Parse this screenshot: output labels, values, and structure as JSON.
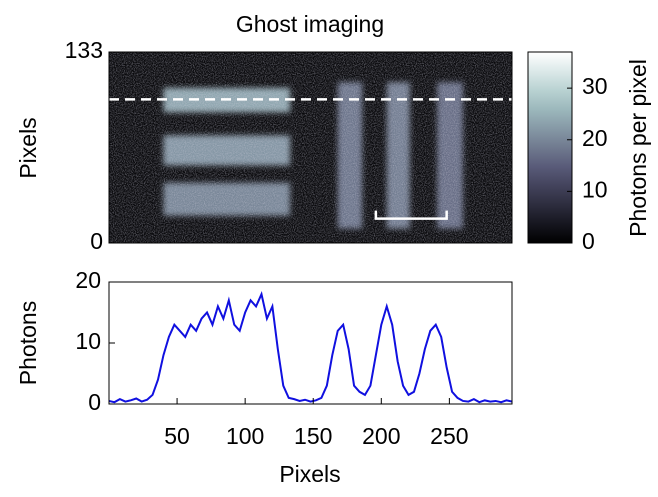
{
  "chart_data": [
    {
      "type": "image",
      "title": "Ghost imaging",
      "ylabel": "Pixels",
      "xlim": [
        0,
        296
      ],
      "ylim": [
        0,
        133
      ],
      "yticks": [
        0,
        133
      ],
      "regions": [
        {
          "x": [
            40,
            133
          ],
          "y": [
            91,
            108
          ],
          "value": 24
        },
        {
          "x": [
            40,
            133
          ],
          "y": [
            54,
            75
          ],
          "value": 22
        },
        {
          "x": [
            40,
            133
          ],
          "y": [
            19,
            42
          ],
          "value": 20
        },
        {
          "x": [
            168,
            186
          ],
          "y": [
            10,
            112
          ],
          "value": 18
        },
        {
          "x": [
            204,
            221
          ],
          "y": [
            10,
            112
          ],
          "value": 19
        },
        {
          "x": [
            241,
            260
          ],
          "y": [
            10,
            112
          ],
          "value": 17
        }
      ],
      "dashed_line_y": 100,
      "scale_bar": {
        "x": [
          196,
          248
        ],
        "y": 17
      },
      "colorbar": {
        "label": "Photons per pixel",
        "lim": [
          0,
          37
        ],
        "ticks": [
          0,
          10,
          20,
          30
        ]
      }
    },
    {
      "type": "line",
      "ylabel": "Photons",
      "xlabel": "Pixels",
      "color": "#1010e0",
      "xlim": [
        0,
        296
      ],
      "ylim": [
        0,
        20
      ],
      "xticks": [
        50,
        100,
        150,
        200,
        250
      ],
      "yticks": [
        0,
        10,
        20
      ],
      "x": [
        0,
        4,
        8,
        12,
        16,
        20,
        24,
        28,
        32,
        36,
        40,
        44,
        48,
        52,
        56,
        60,
        64,
        68,
        72,
        76,
        80,
        84,
        88,
        92,
        96,
        100,
        104,
        108,
        112,
        116,
        120,
        124,
        128,
        132,
        136,
        140,
        144,
        148,
        152,
        156,
        160,
        164,
        168,
        172,
        176,
        180,
        184,
        188,
        192,
        196,
        200,
        204,
        208,
        212,
        216,
        220,
        224,
        228,
        232,
        236,
        240,
        244,
        248,
        252,
        256,
        260,
        264,
        268,
        272,
        276,
        280,
        284,
        288,
        292,
        296
      ],
      "values": [
        0.5,
        0.3,
        0.8,
        0.4,
        0.6,
        0.9,
        0.4,
        0.7,
        1.5,
        4,
        8,
        11,
        13,
        12,
        11,
        13,
        12,
        14,
        15,
        13,
        16,
        14,
        17,
        13,
        12,
        15,
        17,
        16,
        18,
        14,
        16,
        9,
        3,
        1,
        0.8,
        0.5,
        0.7,
        0.4,
        0.6,
        1,
        3,
        8,
        12,
        13,
        9,
        3,
        2,
        1.5,
        3,
        8,
        13,
        16,
        13,
        7,
        3,
        1.5,
        2,
        5,
        9,
        12,
        13,
        11,
        6,
        2,
        1,
        0.5,
        0.4,
        0.8,
        0.3,
        0.6,
        0.4,
        0.5,
        0.3,
        0.6,
        0.4
      ]
    }
  ]
}
